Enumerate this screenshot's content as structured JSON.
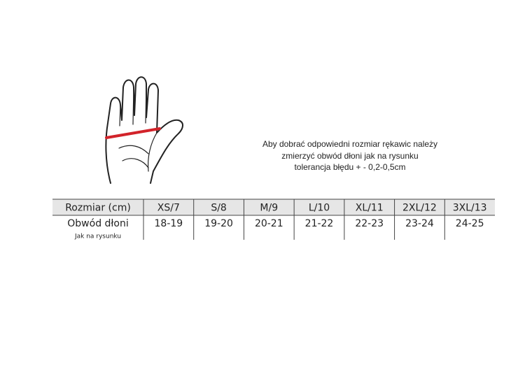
{
  "instructions": [
    "Aby dobrać odpowiedni rozmiar rękawic należy",
    "zmierzyć obwód dłoni jak na rysunku",
    "tolerancja błędu + - 0,2-0,5cm"
  ],
  "table": {
    "header": [
      "Rozmiar (cm)",
      "XS/7",
      "S/8",
      "M/9",
      "L/10",
      "XL/11",
      "2XL/12",
      "3XL/13"
    ],
    "rows": [
      [
        "Obwód dłoni",
        "18-19",
        "19-20",
        "20-21",
        "21-22",
        "22-23",
        "23-24",
        "24-25"
      ]
    ],
    "row_note": "Jak na rysunku"
  }
}
